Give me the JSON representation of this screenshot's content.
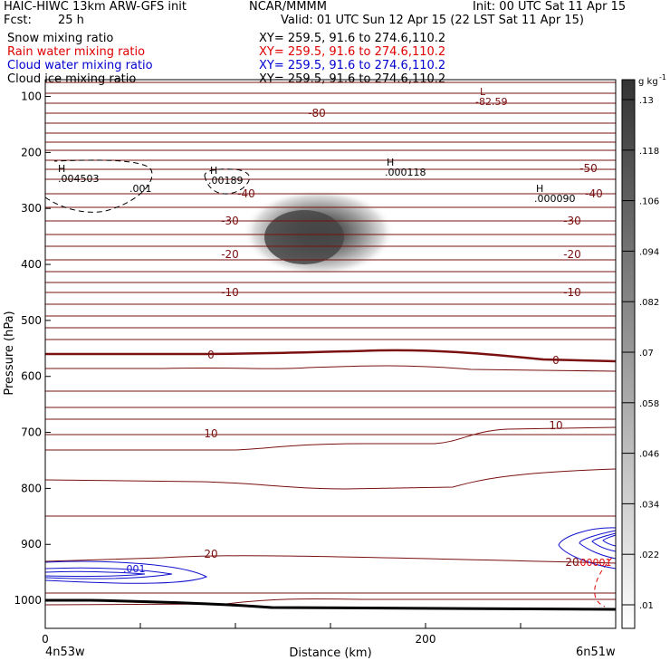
{
  "header": {
    "model": "HAIC-HIWC 13km ARW-GFS init",
    "org": "NCAR/MMMM",
    "init": "Init: 00 UTC Sat 11 Apr 15",
    "fcst_label": "Fcst:",
    "fcst_value": "25 h",
    "valid": "Valid: 01 UTC Sun 12 Apr 15 (22 LST Sat 11 Apr 15)"
  },
  "fields": [
    {
      "name": "Snow mixing ratio",
      "xy": "XY= 259.5, 91.6 to 274.6,110.2",
      "color": "#000000"
    },
    {
      "name": "Rain water mixing ratio",
      "xy": "XY= 259.5, 91.6 to 274.6,110.2",
      "color": "#e00000"
    },
    {
      "name": "Cloud water mixing ratio",
      "xy": "XY= 259.5, 91.6 to 274.6,110.2",
      "color": "#0000d0"
    },
    {
      "name": "Cloud ice mixing ratio",
      "xy": "XY= 259.5, 91.6 to 274.6,110.2",
      "color": "#000000"
    }
  ],
  "chart_data": {
    "type": "heatmap",
    "xlabel": "Distance (km)",
    "ylabel": "Pressure (hPa)",
    "xlim": [
      0,
      300
    ],
    "ylim": [
      1050,
      70
    ],
    "x_ticks": [
      0,
      200
    ],
    "y_ticks": [
      100,
      200,
      300,
      400,
      500,
      600,
      700,
      800,
      900,
      1000
    ],
    "x_endpoints": [
      "4n53w",
      "6n51w"
    ],
    "colorbar": {
      "unit": "g kg",
      "unit_exp": "-1",
      "levels": [
        ".01",
        ".022",
        ".034",
        ".046",
        ".058",
        ".07",
        ".082",
        ".094",
        ".106",
        ".118",
        ".13"
      ]
    },
    "temperature_labels": [
      "-80",
      "-50",
      "-40",
      "-40",
      "-30",
      "-30",
      "-20",
      "-20",
      "-10",
      "-10",
      "0",
      "0",
      "10",
      "10",
      "20",
      "20"
    ],
    "extrema": [
      {
        "type": "L",
        "value": "-82.59"
      },
      {
        "type": "H",
        "value": ".004503"
      },
      {
        "type": "H",
        "value": ".00189"
      },
      {
        "type": "H",
        "value": ".000118"
      },
      {
        "type": "H",
        "value": ".000090"
      }
    ],
    "contour_labels": [
      ".001",
      ".001",
      ".00001"
    ],
    "snow_max_center": {
      "x_km": 140,
      "p_hPa": 340
    }
  }
}
